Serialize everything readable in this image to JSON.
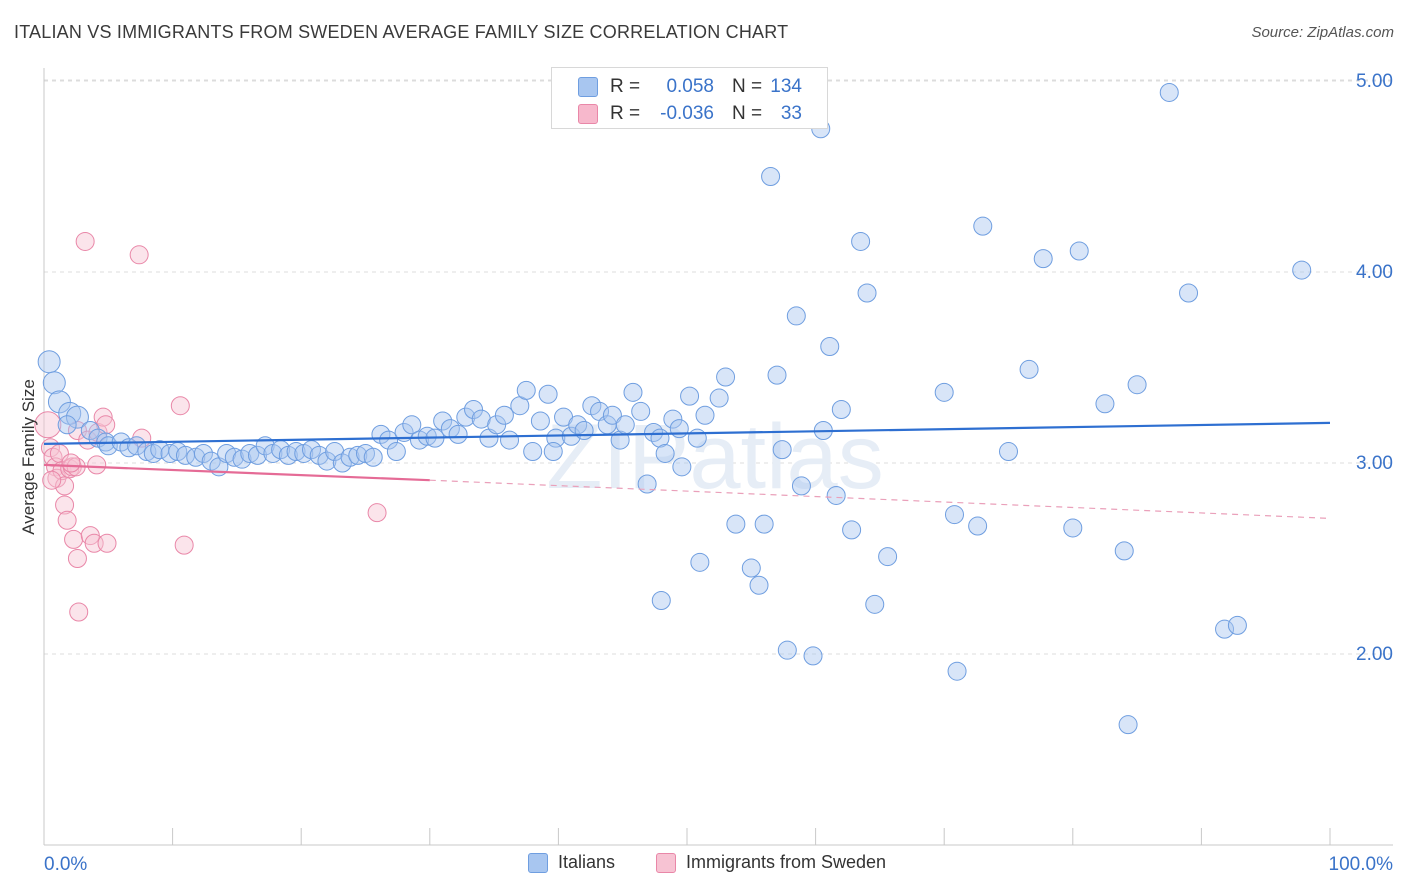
{
  "title": "ITALIAN VS IMMIGRANTS FROM SWEDEN AVERAGE FAMILY SIZE CORRELATION CHART",
  "source": "Source: ZipAtlas.com",
  "watermark": "ZIPatlas",
  "stats": [
    {
      "r_label": "R =",
      "r_value": "0.058",
      "n_label": "N =",
      "n_value": "134",
      "color": "#a8c6f0",
      "border": "#6f9ee0"
    },
    {
      "r_label": "R =",
      "r_value": "-0.036",
      "n_label": "N =",
      "n_value": "33",
      "color": "#f7b8cc",
      "border": "#e987a8"
    }
  ],
  "legend": [
    {
      "label": "Italians",
      "color": "#a8c6f0",
      "border": "#6f9ee0"
    },
    {
      "label": "Immigrants from Sweden",
      "color": "#f7c3d3",
      "border": "#e987a8"
    }
  ],
  "chart_data": {
    "type": "scatter",
    "title": "ITALIAN VS IMMIGRANTS FROM SWEDEN AVERAGE FAMILY SIZE CORRELATION CHART",
    "xlabel": "",
    "ylabel": "Average Family Size",
    "xlim": [
      0,
      100
    ],
    "ylim": [
      1.0,
      5.2
    ],
    "x_tick_labels": [
      "0.0%",
      "100.0%"
    ],
    "y_ticks": [
      2.0,
      3.0,
      4.0,
      5.0
    ],
    "y_tick_labels": [
      "2.00",
      "3.00",
      "4.00",
      "5.00"
    ],
    "grid": true,
    "legend_position": "bottom",
    "series": [
      {
        "name": "Italians",
        "color": "#6f9ee0",
        "fill": "#a8c6f0",
        "trend": {
          "x": [
            0,
            100
          ],
          "y": [
            3.1,
            3.21
          ]
        },
        "points": [
          [
            0.4,
            3.53
          ],
          [
            0.8,
            3.42
          ],
          [
            1.2,
            3.32
          ],
          [
            2.0,
            3.26
          ],
          [
            2.6,
            3.24
          ],
          [
            1.8,
            3.2
          ],
          [
            3.6,
            3.17
          ],
          [
            4.2,
            3.13
          ],
          [
            4.8,
            3.11
          ],
          [
            5.0,
            3.09
          ],
          [
            6.0,
            3.11
          ],
          [
            6.6,
            3.08
          ],
          [
            7.2,
            3.09
          ],
          [
            8.0,
            3.06
          ],
          [
            8.5,
            3.05
          ],
          [
            9.0,
            3.07
          ],
          [
            9.8,
            3.05
          ],
          [
            10.4,
            3.06
          ],
          [
            11.0,
            3.04
          ],
          [
            11.8,
            3.03
          ],
          [
            12.4,
            3.05
          ],
          [
            13.0,
            3.01
          ],
          [
            13.6,
            2.98
          ],
          [
            14.2,
            3.05
          ],
          [
            14.8,
            3.03
          ],
          [
            15.4,
            3.02
          ],
          [
            16.0,
            3.05
          ],
          [
            16.6,
            3.04
          ],
          [
            17.2,
            3.09
          ],
          [
            17.8,
            3.05
          ],
          [
            18.4,
            3.07
          ],
          [
            19.0,
            3.04
          ],
          [
            19.6,
            3.06
          ],
          [
            20.2,
            3.05
          ],
          [
            20.8,
            3.07
          ],
          [
            21.4,
            3.04
          ],
          [
            22.0,
            3.01
          ],
          [
            22.6,
            3.06
          ],
          [
            23.2,
            3.0
          ],
          [
            23.8,
            3.03
          ],
          [
            24.4,
            3.04
          ],
          [
            25.0,
            3.05
          ],
          [
            25.6,
            3.03
          ],
          [
            26.2,
            3.15
          ],
          [
            26.8,
            3.12
          ],
          [
            27.4,
            3.06
          ],
          [
            28.0,
            3.16
          ],
          [
            28.6,
            3.2
          ],
          [
            29.2,
            3.12
          ],
          [
            29.8,
            3.14
          ],
          [
            30.4,
            3.13
          ],
          [
            31.0,
            3.22
          ],
          [
            31.6,
            3.18
          ],
          [
            32.2,
            3.15
          ],
          [
            32.8,
            3.24
          ],
          [
            33.4,
            3.28
          ],
          [
            34.0,
            3.23
          ],
          [
            34.6,
            3.13
          ],
          [
            35.2,
            3.2
          ],
          [
            35.8,
            3.25
          ],
          [
            36.2,
            3.12
          ],
          [
            37.0,
            3.3
          ],
          [
            37.5,
            3.38
          ],
          [
            38.0,
            3.06
          ],
          [
            38.6,
            3.22
          ],
          [
            39.2,
            3.36
          ],
          [
            39.8,
            3.13
          ],
          [
            40.4,
            3.24
          ],
          [
            41.0,
            3.14
          ],
          [
            41.5,
            3.2
          ],
          [
            42.0,
            3.17
          ],
          [
            42.6,
            3.3
          ],
          [
            43.2,
            3.27
          ],
          [
            43.8,
            3.2
          ],
          [
            44.2,
            3.25
          ],
          [
            44.8,
            3.12
          ],
          [
            45.2,
            3.2
          ],
          [
            45.8,
            3.37
          ],
          [
            46.4,
            3.27
          ],
          [
            46.9,
            2.89
          ],
          [
            47.4,
            3.16
          ],
          [
            47.9,
            3.13
          ],
          [
            48.3,
            3.05
          ],
          [
            48.9,
            3.23
          ],
          [
            49.4,
            3.18
          ],
          [
            49.6,
            2.98
          ],
          [
            50.2,
            3.35
          ],
          [
            50.8,
            3.13
          ],
          [
            51.4,
            3.25
          ],
          [
            52.5,
            3.34
          ],
          [
            53.0,
            3.45
          ],
          [
            48.0,
            2.28
          ],
          [
            51.0,
            2.48
          ],
          [
            53.8,
            2.68
          ],
          [
            55.0,
            2.45
          ],
          [
            55.6,
            2.36
          ],
          [
            56.0,
            2.68
          ],
          [
            57.0,
            3.46
          ],
          [
            57.4,
            3.07
          ],
          [
            56.5,
            4.5
          ],
          [
            57.8,
            2.02
          ],
          [
            58.5,
            3.77
          ],
          [
            58.9,
            2.88
          ],
          [
            59.8,
            1.99
          ],
          [
            60.6,
            3.17
          ],
          [
            60.4,
            4.75
          ],
          [
            61.1,
            3.61
          ],
          [
            61.6,
            2.83
          ],
          [
            62.0,
            3.28
          ],
          [
            62.8,
            2.65
          ],
          [
            63.5,
            4.16
          ],
          [
            64.0,
            3.89
          ],
          [
            64.6,
            2.26
          ],
          [
            65.6,
            2.51
          ],
          [
            70.0,
            3.37
          ],
          [
            71.0,
            1.91
          ],
          [
            70.8,
            2.73
          ],
          [
            72.6,
            2.67
          ],
          [
            73.0,
            4.24
          ],
          [
            75.0,
            3.06
          ],
          [
            76.6,
            3.49
          ],
          [
            77.7,
            4.07
          ],
          [
            80.5,
            4.11
          ],
          [
            80.0,
            2.66
          ],
          [
            82.5,
            3.31
          ],
          [
            84.0,
            2.54
          ],
          [
            85.0,
            3.41
          ],
          [
            84.3,
            1.63
          ],
          [
            87.5,
            4.94
          ],
          [
            89.0,
            3.89
          ],
          [
            91.8,
            2.13
          ],
          [
            92.8,
            2.15
          ],
          [
            97.8,
            4.01
          ],
          [
            39.6,
            3.06
          ]
        ]
      },
      {
        "name": "Immigrants from Sweden",
        "color": "#e987a8",
        "fill": "#f7c3d3",
        "trend": {
          "x": [
            0,
            30
          ],
          "y": [
            2.99,
            2.91
          ],
          "dashed_to": {
            "x": 100,
            "y": 2.71
          }
        },
        "points": [
          [
            0.3,
            3.2
          ],
          [
            0.5,
            3.08
          ],
          [
            0.7,
            3.03
          ],
          [
            0.9,
            2.98
          ],
          [
            1.0,
            2.92
          ],
          [
            1.2,
            3.05
          ],
          [
            1.4,
            2.96
          ],
          [
            1.6,
            2.78
          ],
          [
            1.6,
            2.88
          ],
          [
            1.8,
            2.7
          ],
          [
            2.0,
            2.97
          ],
          [
            2.2,
            2.98
          ],
          [
            2.3,
            2.6
          ],
          [
            2.5,
            2.98
          ],
          [
            2.6,
            3.17
          ],
          [
            2.6,
            2.5
          ],
          [
            2.7,
            2.22
          ],
          [
            3.2,
            4.16
          ],
          [
            3.4,
            3.12
          ],
          [
            3.6,
            2.62
          ],
          [
            3.9,
            2.58
          ],
          [
            4.1,
            2.99
          ],
          [
            4.2,
            3.16
          ],
          [
            4.6,
            3.24
          ],
          [
            4.8,
            3.2
          ],
          [
            4.9,
            2.58
          ],
          [
            7.4,
            4.09
          ],
          [
            7.6,
            3.13
          ],
          [
            10.6,
            3.3
          ],
          [
            10.9,
            2.57
          ],
          [
            25.9,
            2.74
          ],
          [
            0.6,
            2.91
          ],
          [
            2.1,
            3.0
          ]
        ]
      }
    ]
  }
}
